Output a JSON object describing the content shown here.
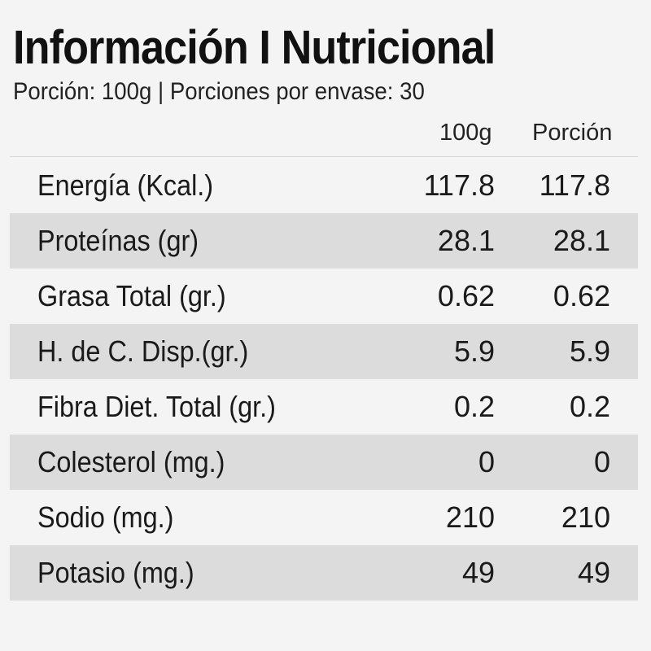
{
  "title": "Información I Nutricional",
  "subtitle": "Porción: 100g | Porciones por envase: 30",
  "columns": [
    "100g",
    "Porción"
  ],
  "rows": [
    {
      "label": "Energía (Kcal.)",
      "per100g": "117.8",
      "perPortion": "117.8"
    },
    {
      "label": "Proteínas (gr)",
      "per100g": "28.1",
      "perPortion": "28.1"
    },
    {
      "label": "Grasa Total (gr.)",
      "per100g": "0.62",
      "perPortion": "0.62"
    },
    {
      "label": "H. de C. Disp.(gr.)",
      "per100g": "5.9",
      "perPortion": "5.9"
    },
    {
      "label": "Fibra Diet. Total (gr.)",
      "per100g": "0.2",
      "perPortion": "0.2"
    },
    {
      "label": "Colesterol (mg.)",
      "per100g": "0",
      "perPortion": "0"
    },
    {
      "label": "Sodio (mg.)",
      "per100g": "210",
      "perPortion": "210"
    },
    {
      "label": "Potasio (mg.)",
      "per100g": "49",
      "perPortion": "49"
    }
  ],
  "colors": {
    "background": "#f4f4f4",
    "shaded_row": "#dcdcdc",
    "text": "#1a1a1a"
  }
}
